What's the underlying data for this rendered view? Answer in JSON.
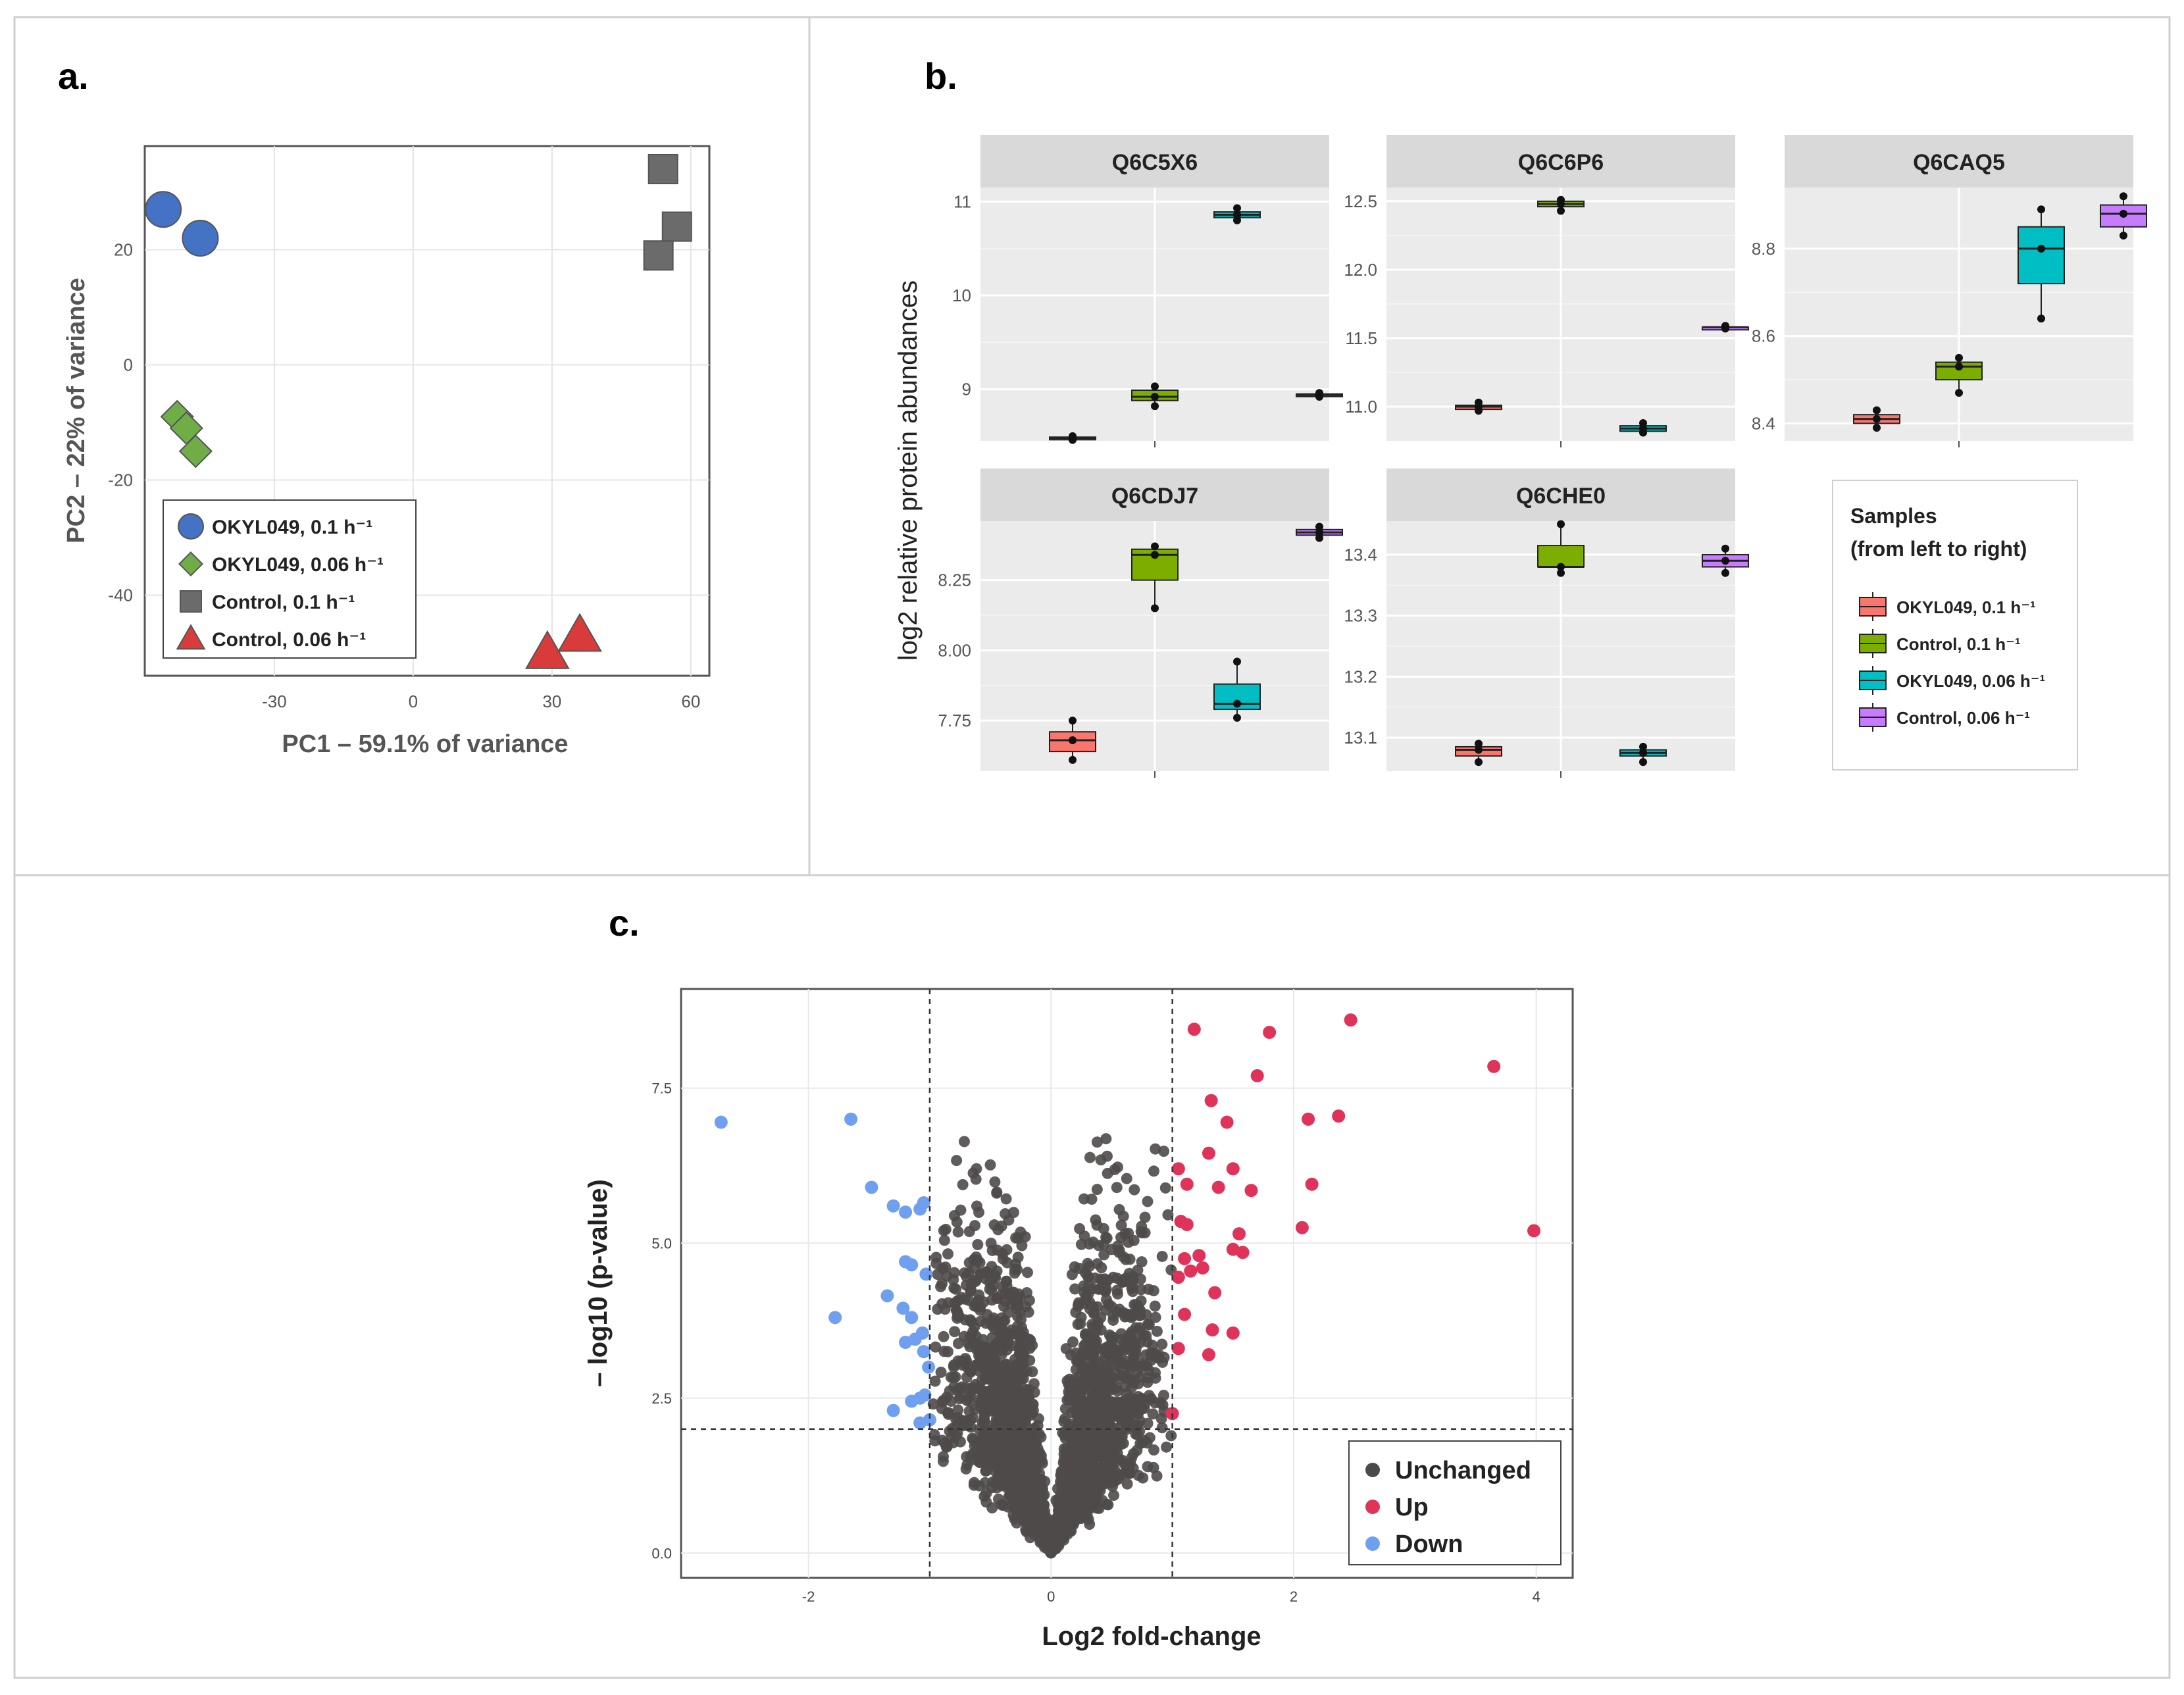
{
  "panel_labels": {
    "a": "a.",
    "b": "b.",
    "c": "c."
  },
  "colors": {
    "okyl01": "#4472C4",
    "okyl006": "#70AD47",
    "ctrl01": "#6B6B6B",
    "ctrl006": "#D93A3A",
    "box_okyl01": "#F8766D",
    "box_ctrl01": "#7CAE00",
    "box_okyl006": "#00BFC4",
    "box_ctrl006": "#C77CFF",
    "unchanged": "#4F4A4A",
    "up": "#E0335A",
    "down": "#6F9FEF"
  },
  "chart_data": [
    {
      "id": "pca",
      "type": "scatter",
      "title": "",
      "xlabel": "PC1 – 59.1% of variance",
      "ylabel": "PC2 – 22% of variance",
      "xlim": [
        -58,
        64
      ],
      "ylim": [
        -54,
        38
      ],
      "xticks": [
        -30,
        0,
        30,
        60
      ],
      "yticks": [
        -40,
        -20,
        0,
        20
      ],
      "series": [
        {
          "name": "OKYL049, 0.1 h⁻¹",
          "marker": "circle",
          "color_key": "okyl01",
          "points": [
            [
              -54,
              27
            ],
            [
              -46,
              22
            ]
          ]
        },
        {
          "name": "OKYL049, 0.06 h⁻¹",
          "marker": "diamond",
          "color_key": "okyl006",
          "points": [
            [
              -51,
              -9
            ],
            [
              -49,
              -11
            ],
            [
              -47,
              -15
            ]
          ]
        },
        {
          "name": "Control, 0.1 h⁻¹",
          "marker": "square",
          "color_key": "ctrl01",
          "points": [
            [
              54,
              34
            ],
            [
              57,
              24
            ],
            [
              53,
              19
            ]
          ]
        },
        {
          "name": "Control, 0.06 h⁻¹",
          "marker": "triangle",
          "color_key": "ctrl006",
          "points": [
            [
              29,
              -50
            ],
            [
              36,
              -47
            ]
          ]
        }
      ]
    },
    {
      "id": "boxplots",
      "type": "box",
      "ylabel": "log2 relative protein abundances",
      "legend_title_1": "Samples",
      "legend_title_2": "(from left to right)",
      "legend": [
        {
          "label": "OKYL049, 0.1 h⁻¹",
          "color_key": "box_okyl01"
        },
        {
          "label": "Control, 0.1 h⁻¹",
          "color_key": "box_ctrl01"
        },
        {
          "label": "OKYL049, 0.06 h⁻¹",
          "color_key": "box_okyl006"
        },
        {
          "label": "Control, 0.06 h⁻¹",
          "color_key": "box_ctrl006"
        }
      ],
      "facets": [
        {
          "title": "Q6C5X6",
          "ylim": [
            8.45,
            11.15
          ],
          "yticks": [
            9,
            10,
            11
          ],
          "boxes": [
            {
              "color_key": "box_okyl01",
              "min": 8.46,
              "q1": 8.47,
              "median": 8.48,
              "q3": 8.49,
              "max": 8.5,
              "points": [
                8.46,
                8.48,
                8.5
              ]
            },
            {
              "color_key": "box_ctrl01",
              "min": 8.82,
              "q1": 8.88,
              "median": 8.92,
              "q3": 8.99,
              "max": 9.03,
              "points": [
                8.82,
                8.92,
                9.03
              ]
            },
            {
              "color_key": "box_okyl006",
              "min": 10.8,
              "q1": 10.83,
              "median": 10.86,
              "q3": 10.89,
              "max": 10.93,
              "points": [
                10.8,
                10.86,
                10.93
              ]
            },
            {
              "color_key": "box_ctrl006",
              "min": 8.92,
              "q1": 8.93,
              "median": 8.94,
              "q3": 8.95,
              "max": 8.96,
              "points": [
                8.92,
                8.94,
                8.96
              ]
            }
          ]
        },
        {
          "title": "Q6C6P6",
          "ylim": [
            10.75,
            12.6
          ],
          "yticks": [
            11.0,
            11.5,
            12.0,
            12.5
          ],
          "boxes": [
            {
              "color_key": "box_okyl01",
              "min": 10.97,
              "q1": 10.98,
              "median": 11.0,
              "q3": 11.01,
              "max": 11.03,
              "points": [
                10.97,
                11.0,
                11.03
              ]
            },
            {
              "color_key": "box_ctrl01",
              "min": 12.43,
              "q1": 12.46,
              "median": 12.48,
              "q3": 12.5,
              "max": 12.51,
              "points": [
                12.43,
                12.48,
                12.51
              ]
            },
            {
              "color_key": "box_okyl006",
              "min": 10.81,
              "q1": 10.82,
              "median": 10.84,
              "q3": 10.86,
              "max": 10.88,
              "points": [
                10.81,
                10.84,
                10.88
              ]
            },
            {
              "color_key": "box_ctrl006",
              "min": 11.57,
              "q1": 11.57,
              "median": 11.58,
              "q3": 11.58,
              "max": 11.59,
              "points": [
                11.57,
                11.58,
                11.59
              ]
            }
          ]
        },
        {
          "title": "Q6CAQ5",
          "ylim": [
            8.36,
            8.94
          ],
          "yticks": [
            8.4,
            8.6,
            8.8
          ],
          "boxes": [
            {
              "color_key": "box_okyl01",
              "min": 8.39,
              "q1": 8.4,
              "median": 8.41,
              "q3": 8.42,
              "max": 8.43,
              "points": [
                8.39,
                8.41,
                8.43
              ]
            },
            {
              "color_key": "box_ctrl01",
              "min": 8.47,
              "q1": 8.5,
              "median": 8.53,
              "q3": 8.54,
              "max": 8.55,
              "points": [
                8.47,
                8.53,
                8.55
              ]
            },
            {
              "color_key": "box_okyl006",
              "min": 8.64,
              "q1": 8.72,
              "median": 8.8,
              "q3": 8.85,
              "max": 8.89,
              "points": [
                8.64,
                8.8,
                8.89
              ]
            },
            {
              "color_key": "box_ctrl006",
              "min": 8.83,
              "q1": 8.85,
              "median": 8.88,
              "q3": 8.9,
              "max": 8.92,
              "points": [
                8.83,
                8.88,
                8.92
              ]
            }
          ]
        },
        {
          "title": "Q6CDJ7",
          "ylim": [
            7.57,
            8.46
          ],
          "yticks": [
            7.75,
            8.0,
            8.25
          ],
          "boxes": [
            {
              "color_key": "box_okyl01",
              "min": 7.61,
              "q1": 7.64,
              "median": 7.68,
              "q3": 7.71,
              "max": 7.75,
              "points": [
                7.61,
                7.68,
                7.75
              ]
            },
            {
              "color_key": "box_ctrl01",
              "min": 8.15,
              "q1": 8.25,
              "median": 8.34,
              "q3": 8.36,
              "max": 8.37,
              "points": [
                8.15,
                8.34,
                8.37
              ]
            },
            {
              "color_key": "box_okyl006",
              "min": 7.76,
              "q1": 7.79,
              "median": 7.81,
              "q3": 7.88,
              "max": 7.96,
              "points": [
                7.76,
                7.81,
                7.96
              ]
            },
            {
              "color_key": "box_ctrl006",
              "min": 8.4,
              "q1": 8.41,
              "median": 8.42,
              "q3": 8.43,
              "max": 8.44,
              "points": [
                8.4,
                8.42,
                8.44
              ]
            }
          ]
        },
        {
          "title": "Q6CHE0",
          "ylim": [
            13.045,
            13.455
          ],
          "yticks": [
            13.1,
            13.2,
            13.3,
            13.4
          ],
          "boxes": [
            {
              "color_key": "box_okyl01",
              "min": 13.06,
              "q1": 13.07,
              "median": 13.08,
              "q3": 13.085,
              "max": 13.09,
              "points": [
                13.06,
                13.08,
                13.09
              ]
            },
            {
              "color_key": "box_ctrl01",
              "min": 13.37,
              "q1": 13.38,
              "median": 13.38,
              "q3": 13.415,
              "max": 13.45,
              "points": [
                13.37,
                13.38,
                13.45
              ]
            },
            {
              "color_key": "box_okyl006",
              "min": 13.06,
              "q1": 13.07,
              "median": 13.075,
              "q3": 13.08,
              "max": 13.085,
              "points": [
                13.06,
                13.075,
                13.085
              ]
            },
            {
              "color_key": "box_ctrl006",
              "min": 13.37,
              "q1": 13.38,
              "median": 13.39,
              "q3": 13.4,
              "max": 13.41,
              "points": [
                13.37,
                13.39,
                13.41
              ]
            }
          ]
        }
      ]
    },
    {
      "id": "volcano",
      "type": "scatter",
      "xlabel": "Log2 fold-change",
      "ylabel": "– log10 (p-value)",
      "xlim": [
        -3.05,
        4.3
      ],
      "ylim": [
        -0.4,
        9.1
      ],
      "xticks": [
        -2,
        0,
        2,
        4
      ],
      "yticks": [
        0.0,
        2.5,
        5.0,
        7.5
      ],
      "yticklabels": [
        "0.0",
        "2.5",
        "5.0",
        "7.5"
      ],
      "thresholds": {
        "x": [
          -1,
          1
        ],
        "y": 2
      },
      "legend": [
        {
          "label": "Unchanged",
          "color_key": "unchanged"
        },
        {
          "label": "Up",
          "color_key": "up"
        },
        {
          "label": "Down",
          "color_key": "down"
        }
      ],
      "unchanged_summary": {
        "count": 2400,
        "note": "dense V-shaped cloud: |log2FC| up to ~1, -log10(p) 0 to ~6.8"
      },
      "up_points": [
        [
          1.18,
          8.45
        ],
        [
          1.8,
          8.4
        ],
        [
          2.47,
          8.6
        ],
        [
          3.65,
          7.85
        ],
        [
          1.7,
          7.7
        ],
        [
          2.12,
          7.0
        ],
        [
          2.37,
          7.05
        ],
        [
          3.98,
          5.2
        ],
        [
          1.32,
          7.3
        ],
        [
          1.45,
          6.95
        ],
        [
          1.05,
          6.2
        ],
        [
          1.12,
          5.95
        ],
        [
          1.3,
          6.45
        ],
        [
          1.5,
          6.2
        ],
        [
          1.38,
          5.9
        ],
        [
          1.65,
          5.85
        ],
        [
          2.15,
          5.95
        ],
        [
          2.07,
          5.25
        ],
        [
          1.07,
          5.35
        ],
        [
          1.12,
          5.3
        ],
        [
          1.55,
          5.15
        ],
        [
          1.5,
          4.9
        ],
        [
          1.58,
          4.85
        ],
        [
          1.1,
          4.75
        ],
        [
          1.22,
          4.8
        ],
        [
          1.05,
          4.45
        ],
        [
          1.15,
          4.55
        ],
        [
          1.25,
          4.6
        ],
        [
          1.35,
          4.2
        ],
        [
          1.1,
          3.85
        ],
        [
          1.33,
          3.6
        ],
        [
          1.5,
          3.55
        ],
        [
          1.05,
          3.3
        ],
        [
          1.3,
          3.2
        ],
        [
          1.0,
          2.25
        ]
      ],
      "down_points": [
        [
          -2.72,
          6.95
        ],
        [
          -1.65,
          7.0
        ],
        [
          -1.48,
          5.9
        ],
        [
          -1.3,
          5.6
        ],
        [
          -1.2,
          5.5
        ],
        [
          -1.05,
          5.65
        ],
        [
          -1.08,
          5.55
        ],
        [
          -1.2,
          4.7
        ],
        [
          -1.15,
          4.65
        ],
        [
          -1.03,
          4.5
        ],
        [
          -1.35,
          4.15
        ],
        [
          -1.22,
          3.95
        ],
        [
          -1.15,
          3.8
        ],
        [
          -1.78,
          3.8
        ],
        [
          -1.06,
          3.55
        ],
        [
          -1.2,
          3.4
        ],
        [
          -1.12,
          3.45
        ],
        [
          -1.05,
          3.25
        ],
        [
          -1.01,
          3.0
        ],
        [
          -1.08,
          2.5
        ],
        [
          -1.15,
          2.45
        ],
        [
          -1.04,
          2.55
        ],
        [
          -1.3,
          2.3
        ],
        [
          -1.08,
          2.1
        ],
        [
          -1.0,
          2.15
        ]
      ]
    }
  ]
}
